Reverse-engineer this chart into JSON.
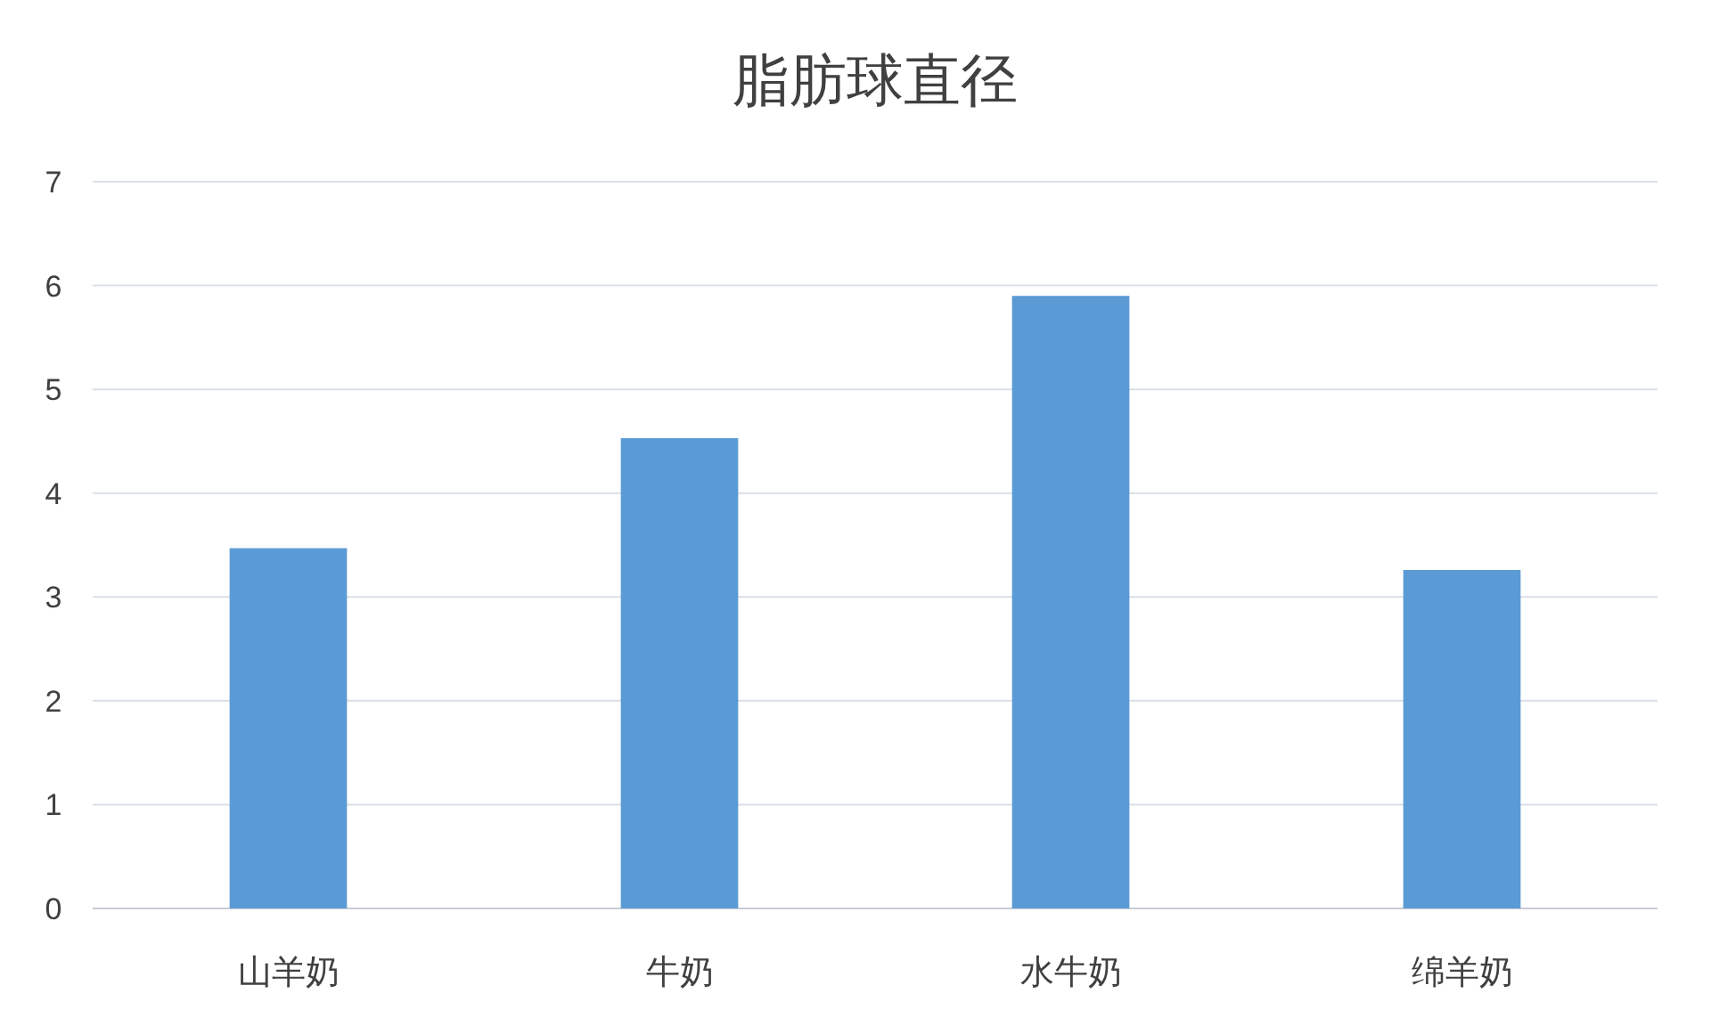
{
  "chart_data": {
    "type": "bar",
    "title": "脂肪球直径",
    "categories": [
      "山羊奶",
      "牛奶",
      "水牛奶",
      "绵羊奶"
    ],
    "values": [
      3.47,
      4.53,
      5.9,
      3.26
    ],
    "color": "#5b9bd5",
    "ylim": [
      0,
      7
    ],
    "yticks": [
      0,
      1,
      2,
      3,
      4,
      5,
      6,
      7
    ],
    "grid": "y"
  }
}
